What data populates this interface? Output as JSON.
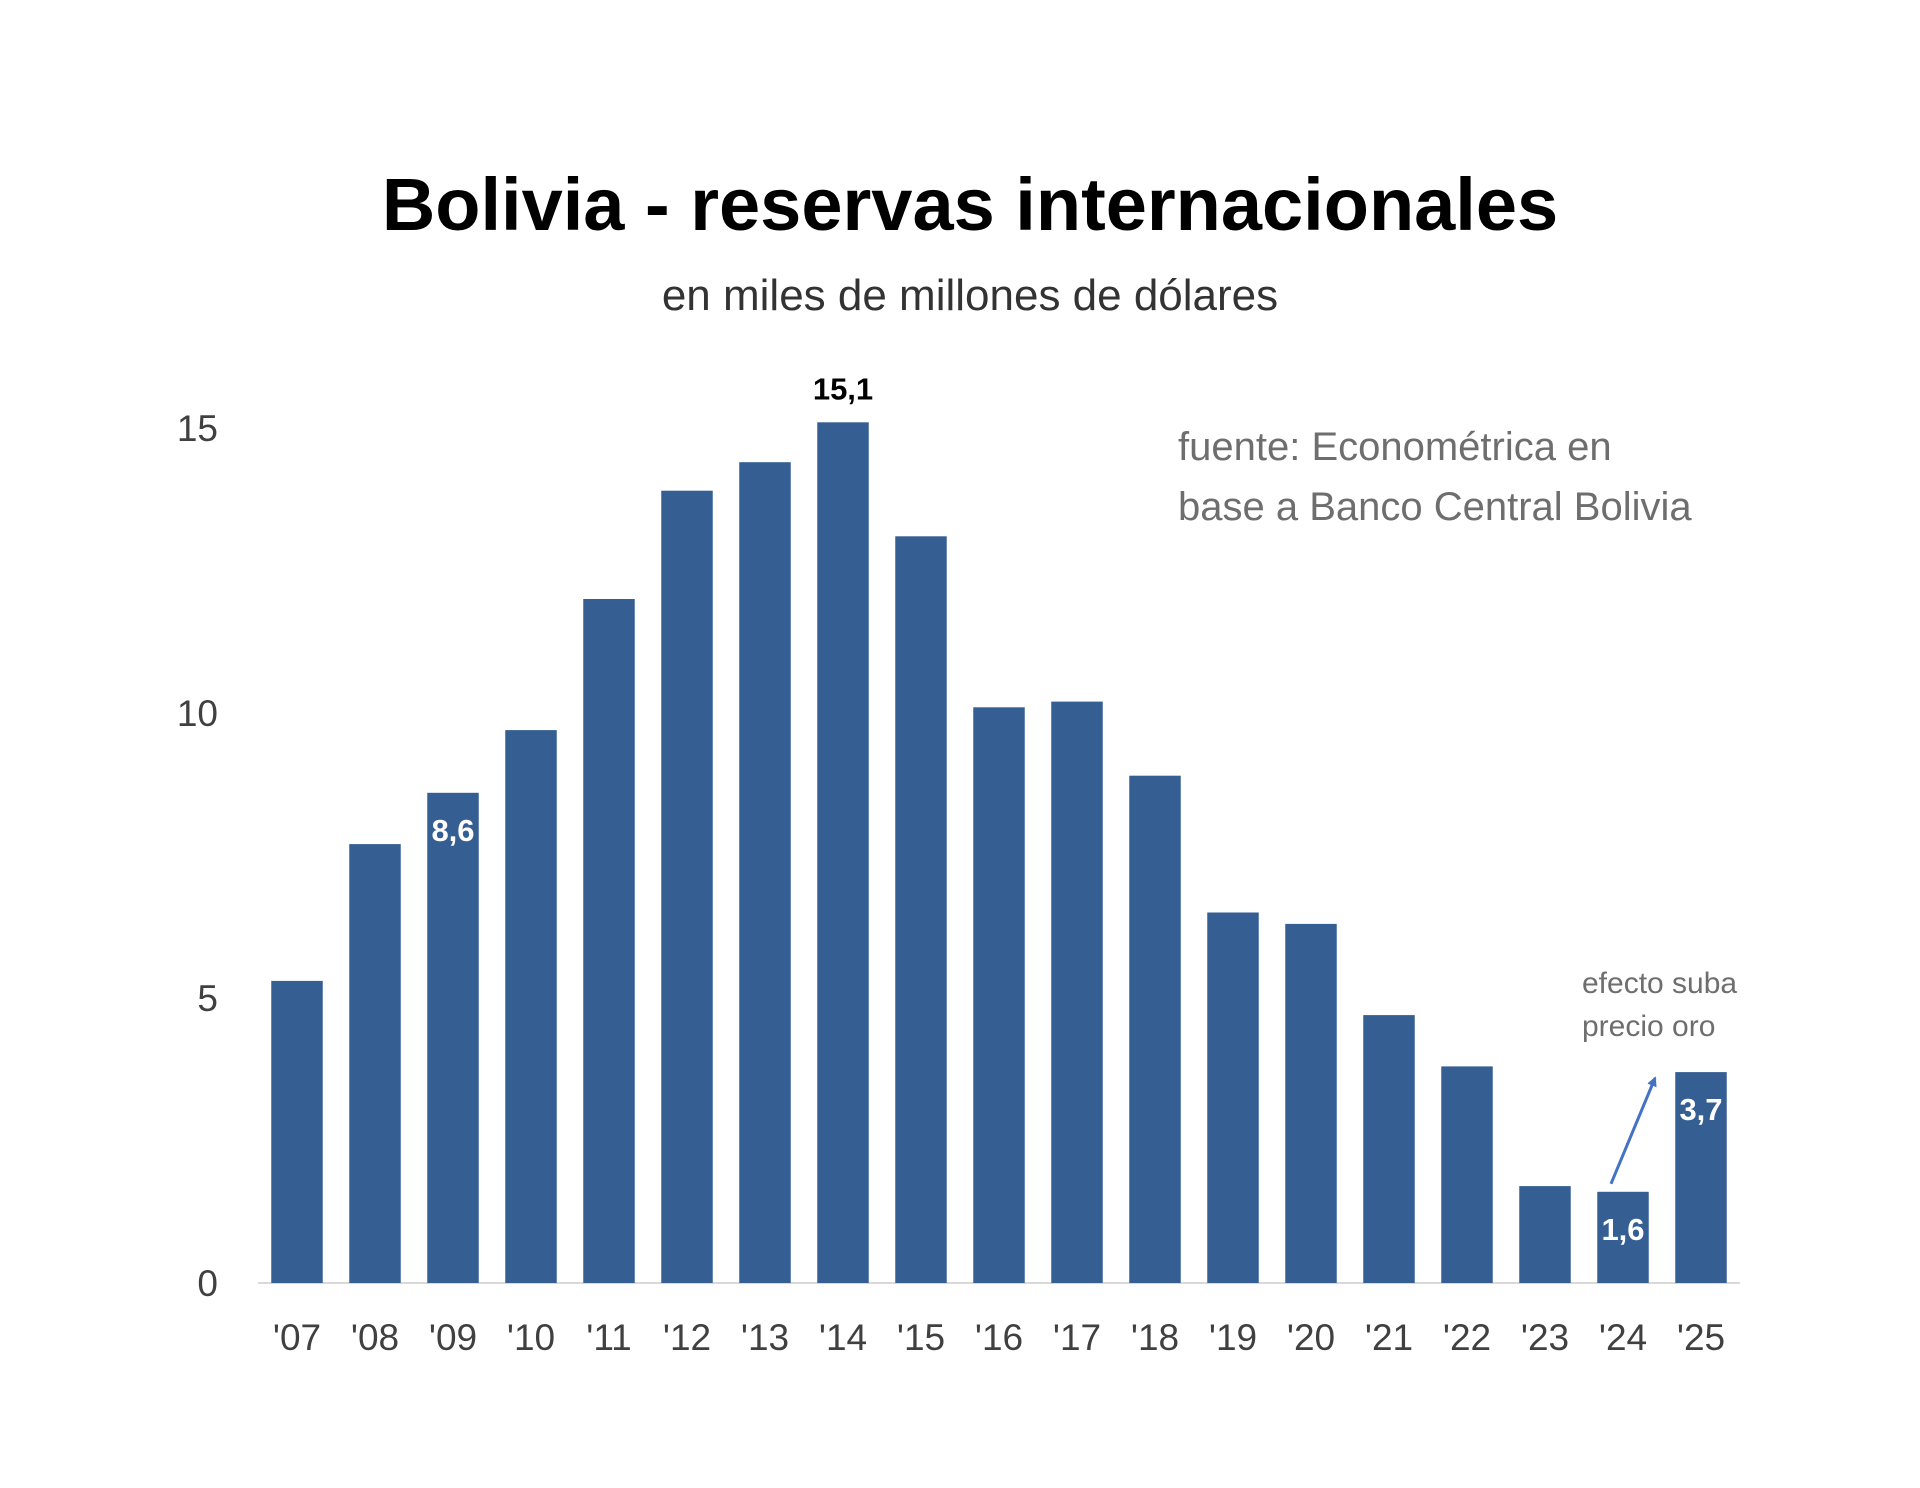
{
  "chart_data": {
    "type": "bar",
    "title": "Bolivia - reservas internacionales",
    "subtitle": "en miles de millones de dólares",
    "categories": [
      "'07",
      "'08",
      "'09",
      "'10",
      "'11",
      "'12",
      "'13",
      "'14",
      "'15",
      "'16",
      "'17",
      "'18",
      "'19",
      "'20",
      "'21",
      "'22",
      "'23",
      "'24",
      "'25"
    ],
    "values": [
      5.3,
      7.7,
      8.6,
      9.7,
      12.0,
      13.9,
      14.4,
      15.1,
      13.1,
      10.1,
      10.2,
      8.9,
      6.5,
      6.3,
      4.7,
      3.8,
      1.7,
      1.6,
      3.7
    ],
    "ylim": [
      0,
      15
    ],
    "yticks": [
      0,
      5,
      10,
      15
    ],
    "grid": false,
    "bar_color": "#355e93",
    "data_labels": [
      {
        "index": 2,
        "text": "8,6",
        "placement": "inside"
      },
      {
        "index": 7,
        "text": "15,1",
        "placement": "outside"
      },
      {
        "index": 17,
        "text": "1,6",
        "placement": "inside"
      },
      {
        "index": 18,
        "text": "3,7",
        "placement": "inside"
      }
    ],
    "source_lines": [
      "fuente: Econométrica en",
      "base a Banco Central Bolivia"
    ],
    "annotation": {
      "lines": [
        "efecto suba",
        "precio oro"
      ],
      "from_index": 17,
      "to_index": 18
    }
  }
}
